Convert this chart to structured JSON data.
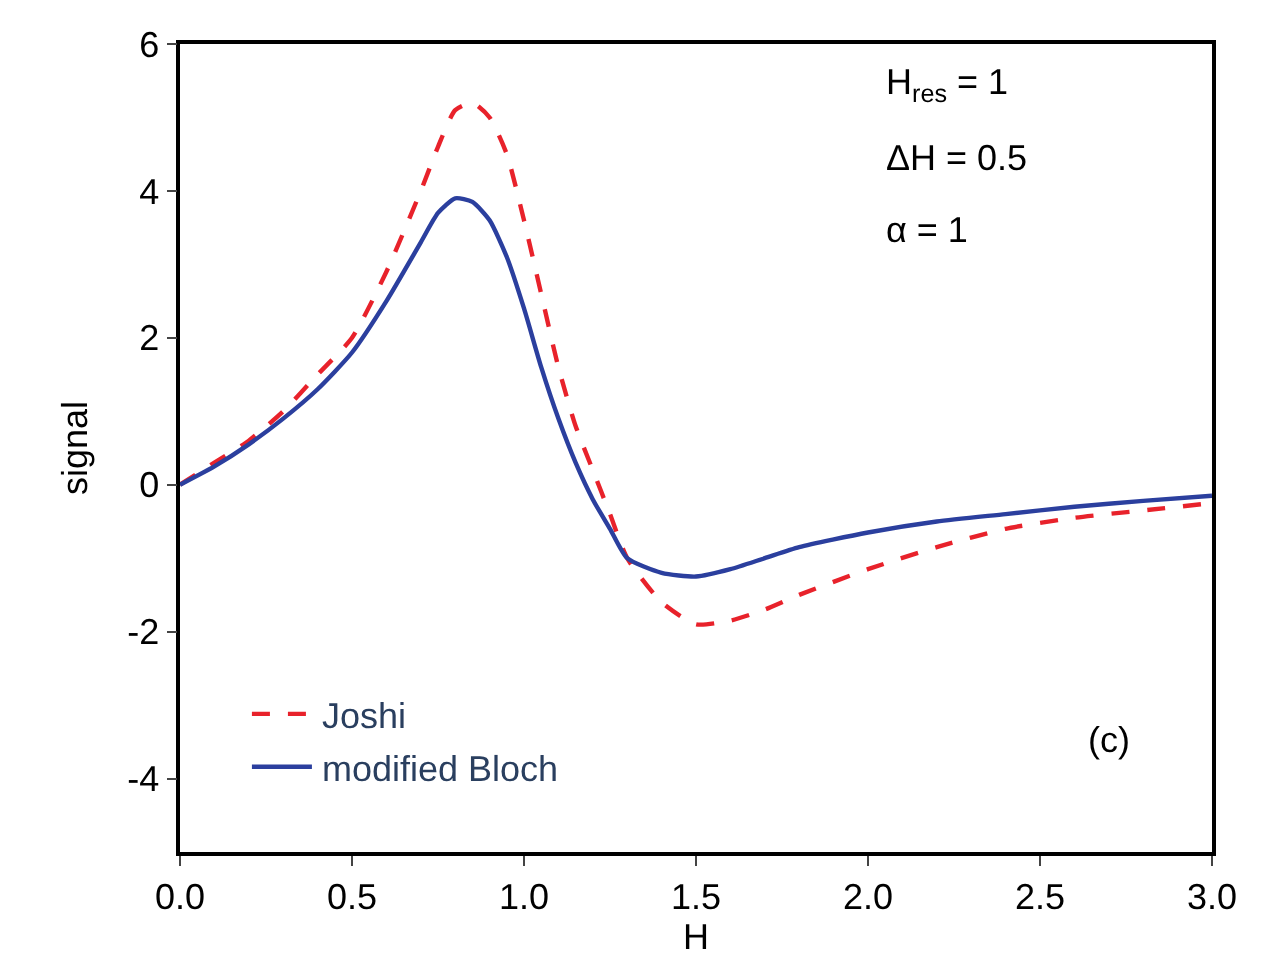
{
  "chart_data": {
    "type": "line",
    "xlabel": "H",
    "ylabel": "signal",
    "xlim": [
      0,
      3
    ],
    "ylim": [
      -5,
      6
    ],
    "xticks": [
      {
        "value": 0,
        "label": "0.0"
      },
      {
        "value": 0.5,
        "label": "0.5"
      },
      {
        "value": 1,
        "label": "1.0"
      },
      {
        "value": 1.5,
        "label": "1.5"
      },
      {
        "value": 2,
        "label": "2.0"
      },
      {
        "value": 2.5,
        "label": "2.5"
      },
      {
        "value": 3,
        "label": "3.0"
      }
    ],
    "yticks": [
      -4,
      -2,
      0,
      2,
      4,
      6
    ],
    "x": [
      0,
      0.1,
      0.2,
      0.3,
      0.4,
      0.5,
      0.6,
      0.7,
      0.75,
      0.8,
      0.85,
      0.9,
      0.95,
      1.0,
      1.05,
      1.1,
      1.15,
      1.2,
      1.25,
      1.3,
      1.4,
      1.5,
      1.6,
      1.7,
      1.8,
      2.0,
      2.2,
      2.4,
      2.6,
      2.8,
      3.0
    ],
    "series": [
      {
        "name": "Joshi",
        "color": "#e8222b",
        "line_style": "dashed",
        "values": [
          0,
          0.3,
          0.6,
          1.0,
          1.5,
          2.0,
          2.9,
          4.0,
          4.6,
          5.1,
          5.2,
          5.0,
          4.5,
          3.6,
          2.6,
          1.6,
          0.8,
          0.2,
          -0.4,
          -1.0,
          -1.6,
          -1.9,
          -1.85,
          -1.7,
          -1.5,
          -1.15,
          -0.85,
          -0.6,
          -0.45,
          -0.35,
          -0.25
        ]
      },
      {
        "name": "modified Bloch",
        "color": "#2b3f9e",
        "line_style": "solid",
        "values": [
          0,
          0.25,
          0.55,
          0.9,
          1.3,
          1.8,
          2.5,
          3.3,
          3.7,
          3.9,
          3.85,
          3.6,
          3.1,
          2.4,
          1.6,
          0.9,
          0.3,
          -0.2,
          -0.6,
          -1.0,
          -1.2,
          -1.25,
          -1.15,
          -1.0,
          -0.85,
          -0.65,
          -0.5,
          -0.4,
          -0.3,
          -0.22,
          -0.15
        ]
      }
    ],
    "annotations": [
      "H$_{res}$ = 1",
      "ΔH = 0.5",
      "α = 1",
      "(c)"
    ],
    "legend": "bottom left",
    "marker": "none"
  }
}
